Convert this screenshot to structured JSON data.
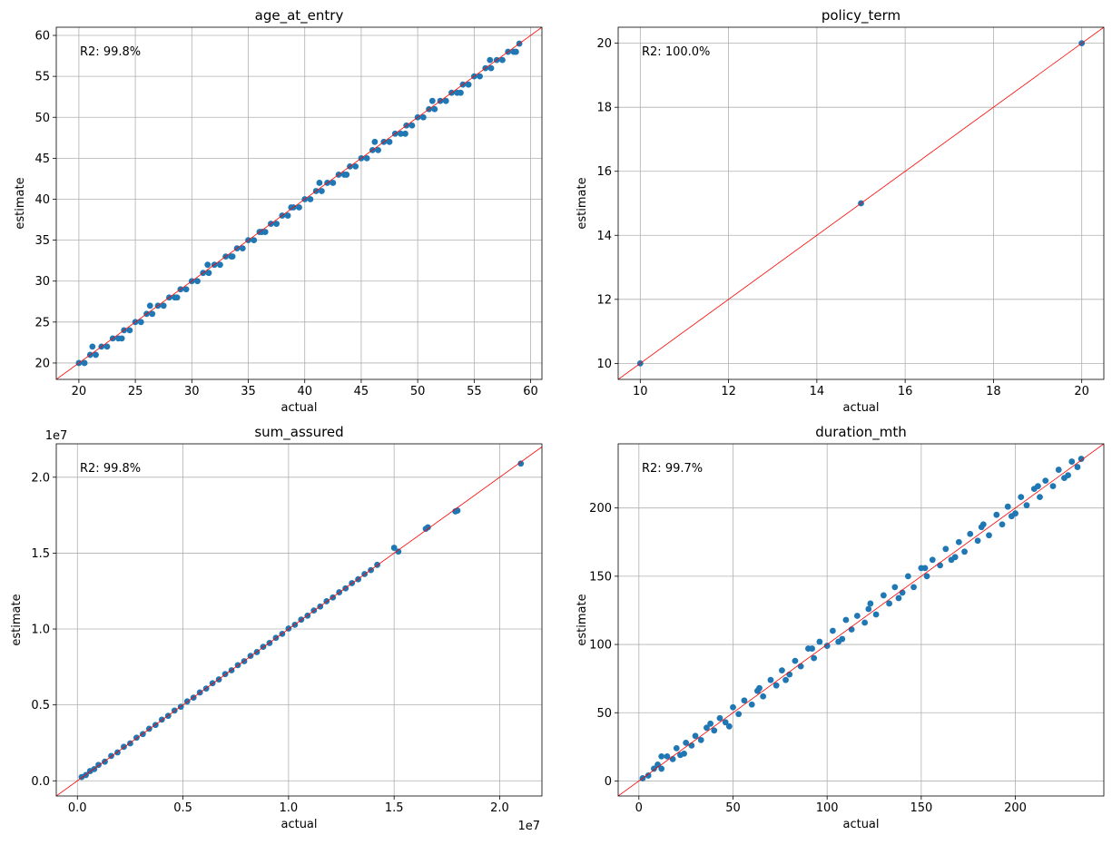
{
  "chart_data": [
    {
      "type": "scatter",
      "title": "age_at_entry",
      "xlabel": "actual",
      "ylabel": "estimate",
      "annotation": "R2: 99.8%",
      "xlim": [
        18.0,
        61.0
      ],
      "ylim": [
        18.0,
        61.0
      ],
      "xticks": [
        20,
        25,
        30,
        35,
        40,
        45,
        50,
        55,
        60
      ],
      "yticks": [
        20,
        25,
        30,
        35,
        40,
        45,
        50,
        55,
        60
      ],
      "xtick_labels": [
        "20",
        "25",
        "30",
        "35",
        "40",
        "45",
        "50",
        "55",
        "60"
      ],
      "ytick_labels": [
        "20",
        "25",
        "30",
        "35",
        "40",
        "45",
        "50",
        "55",
        "60"
      ],
      "offset_label_x": "",
      "offset_label_y": "",
      "grid": true,
      "reference_line": "y = x",
      "marker_color": "#1f77b4",
      "line_color": "#ff0000",
      "x": [
        20,
        20.5,
        21,
        21.5,
        22,
        22.5,
        23,
        23.5,
        24,
        24.5,
        25,
        25.5,
        26,
        26.5,
        27,
        27.5,
        28,
        28.5,
        29,
        29.5,
        30,
        30.5,
        31,
        31.5,
        32,
        32.5,
        33,
        33.5,
        34,
        34.5,
        35,
        35.5,
        36,
        36.5,
        37,
        37.5,
        38,
        38.5,
        39,
        39.5,
        40,
        40.5,
        41,
        41.5,
        42,
        42.5,
        43,
        43.5,
        44,
        44.5,
        45,
        45.5,
        46,
        46.5,
        47,
        47.5,
        48,
        48.5,
        49,
        49.5,
        50,
        50.5,
        51,
        51.5,
        52,
        52.5,
        53,
        53.5,
        54,
        54.5,
        55,
        55.5,
        56,
        56.5,
        57,
        57.5,
        58,
        58.5,
        59,
        21.2,
        23.8,
        26.3,
        28.7,
        31.4,
        33.6,
        36.2,
        38.8,
        41.3,
        43.7,
        46.2,
        48.9,
        51.3,
        53.8,
        56.4,
        58.7
      ],
      "y": [
        20,
        20,
        21,
        21,
        22,
        22,
        23,
        23,
        24,
        24,
        25,
        25,
        26,
        26,
        27,
        27,
        28,
        28,
        29,
        29,
        30,
        30,
        31,
        31,
        32,
        32,
        33,
        33,
        34,
        34,
        35,
        35,
        36,
        36,
        37,
        37,
        38,
        38,
        39,
        39,
        40,
        40,
        41,
        41,
        42,
        42,
        43,
        43,
        44,
        44,
        45,
        45,
        46,
        46,
        47,
        47,
        48,
        48,
        49,
        49,
        50,
        50,
        51,
        51,
        52,
        52,
        53,
        53,
        54,
        54,
        55,
        55,
        56,
        56,
        57,
        57,
        58,
        58,
        59,
        22,
        23,
        27,
        28,
        32,
        33,
        36,
        39,
        42,
        43,
        47,
        48,
        52,
        53,
        57,
        58
      ]
    },
    {
      "type": "scatter",
      "title": "policy_term",
      "xlabel": "actual",
      "ylabel": "estimate",
      "annotation": "R2: 100.0%",
      "xlim": [
        9.5,
        20.5
      ],
      "ylim": [
        9.5,
        20.5
      ],
      "xticks": [
        10,
        12,
        14,
        16,
        18,
        20
      ],
      "yticks": [
        10,
        12,
        14,
        16,
        18,
        20
      ],
      "xtick_labels": [
        "10",
        "12",
        "14",
        "16",
        "18",
        "20"
      ],
      "ytick_labels": [
        "10",
        "12",
        "14",
        "16",
        "18",
        "20"
      ],
      "offset_label_x": "",
      "offset_label_y": "",
      "grid": true,
      "reference_line": "y = x",
      "marker_color": "#1f77b4",
      "line_color": "#ff0000",
      "x": [
        10,
        15,
        20
      ],
      "y": [
        10,
        15,
        20
      ]
    },
    {
      "type": "scatter",
      "title": "sum_assured",
      "xlabel": "actual",
      "ylabel": "estimate",
      "annotation": "R2: 99.8%",
      "xlim": [
        -1000000,
        22000000
      ],
      "ylim": [
        -1000000,
        22200000
      ],
      "xticks": [
        0,
        5000000,
        10000000,
        15000000,
        20000000
      ],
      "yticks": [
        0,
        5000000,
        10000000,
        15000000,
        20000000
      ],
      "xtick_labels": [
        "0.0",
        "0.5",
        "1.0",
        "1.5",
        "2.0"
      ],
      "ytick_labels": [
        "0.0",
        "0.5",
        "1.0",
        "1.5",
        "2.0"
      ],
      "offset_label_x": "1e7",
      "offset_label_y": "1e7",
      "grid": true,
      "reference_line": "y = x",
      "marker_color": "#1f77b4",
      "line_color": "#ff0000",
      "x": [
        200000,
        400000,
        600000,
        800000,
        1000000,
        1300000,
        1600000,
        1900000,
        2200000,
        2500000,
        2800000,
        3100000,
        3400000,
        3700000,
        4000000,
        4300000,
        4600000,
        4900000,
        5200000,
        5500000,
        5800000,
        6100000,
        6400000,
        6700000,
        7000000,
        7300000,
        7600000,
        7900000,
        8200000,
        8500000,
        8800000,
        9100000,
        9400000,
        9700000,
        10000000,
        10300000,
        10600000,
        10900000,
        11200000,
        11500000,
        11800000,
        12100000,
        12400000,
        12700000,
        13000000,
        13300000,
        13600000,
        13900000,
        14200000,
        15000000,
        15200000,
        16500000,
        16600000,
        17900000,
        18000000,
        21000000
      ],
      "y": [
        250000,
        380000,
        640000,
        770000,
        1050000,
        1260000,
        1640000,
        1870000,
        2240000,
        2470000,
        2840000,
        3080000,
        3430000,
        3680000,
        4030000,
        4280000,
        4630000,
        4880000,
        5230000,
        5480000,
        5820000,
        6080000,
        6430000,
        6680000,
        7030000,
        7280000,
        7620000,
        7880000,
        8230000,
        8480000,
        8830000,
        9080000,
        9420000,
        9680000,
        10030000,
        10280000,
        10620000,
        10880000,
        11220000,
        11480000,
        11830000,
        12080000,
        12420000,
        12680000,
        13020000,
        13280000,
        13620000,
        13880000,
        14230000,
        15350000,
        15100000,
        16600000,
        16700000,
        17750000,
        17800000,
        20900000
      ]
    },
    {
      "type": "scatter",
      "title": "duration_mth",
      "xlabel": "actual",
      "ylabel": "estimate",
      "annotation": "R2: 99.7%",
      "xlim": [
        -11.0,
        247.0
      ],
      "ylim": [
        -11.0,
        247.0
      ],
      "xticks": [
        0,
        50,
        100,
        150,
        200
      ],
      "yticks": [
        0,
        50,
        100,
        150,
        200
      ],
      "xtick_labels": [
        "0",
        "50",
        "100",
        "150",
        "200"
      ],
      "ytick_labels": [
        "0",
        "50",
        "100",
        "150",
        "200"
      ],
      "offset_label_x": "",
      "offset_label_y": "",
      "grid": true,
      "reference_line": "y = x",
      "marker_color": "#1f77b4",
      "line_color": "#ff0000",
      "x": [
        2,
        5,
        8,
        10,
        12,
        15,
        18,
        20,
        22,
        25,
        28,
        30,
        33,
        36,
        40,
        43,
        46,
        50,
        53,
        56,
        60,
        63,
        66,
        70,
        73,
        76,
        80,
        83,
        86,
        90,
        93,
        96,
        100,
        103,
        106,
        110,
        113,
        116,
        120,
        123,
        126,
        130,
        133,
        136,
        140,
        143,
        146,
        150,
        153,
        156,
        160,
        163,
        166,
        170,
        173,
        176,
        180,
        183,
        186,
        190,
        193,
        196,
        200,
        203,
        206,
        210,
        213,
        216,
        220,
        223,
        226,
        230,
        233,
        235,
        12,
        24,
        38,
        48,
        64,
        78,
        92,
        108,
        122,
        138,
        152,
        168,
        182,
        198,
        212,
        228
      ],
      "y": [
        2,
        4,
        9,
        12,
        9,
        18,
        16,
        24,
        19,
        28,
        26,
        33,
        30,
        39,
        37,
        46,
        43,
        54,
        49,
        59,
        56,
        66,
        62,
        74,
        70,
        81,
        78,
        88,
        84,
        97,
        90,
        102,
        99,
        110,
        102,
        118,
        111,
        121,
        116,
        130,
        122,
        136,
        130,
        142,
        138,
        150,
        142,
        156,
        150,
        162,
        158,
        170,
        162,
        175,
        168,
        181,
        176,
        188,
        180,
        195,
        188,
        201,
        196,
        208,
        202,
        214,
        208,
        220,
        216,
        228,
        222,
        234,
        230,
        236,
        18,
        20,
        42,
        40,
        68,
        74,
        97,
        104,
        126,
        134,
        156,
        164,
        186,
        194,
        216,
        224
      ]
    }
  ]
}
